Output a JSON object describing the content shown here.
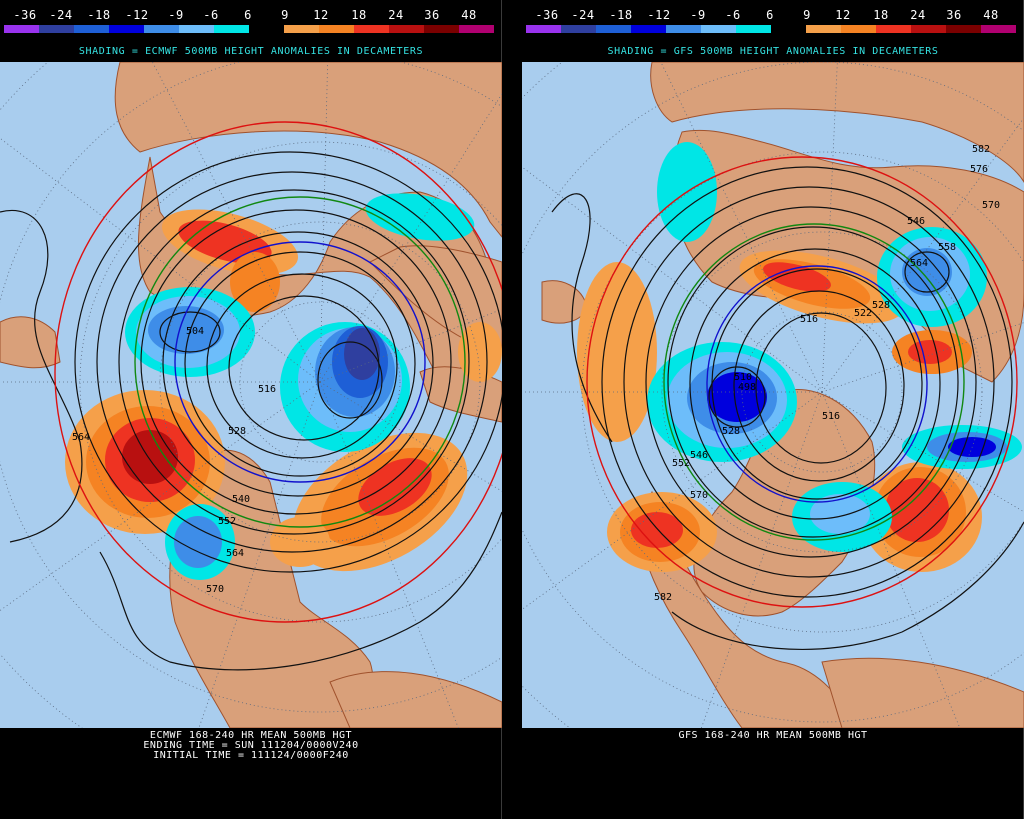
{
  "legend": {
    "ticks": [
      "-36",
      "-24",
      "-18",
      "-12",
      "-9",
      "-6",
      "6",
      "9",
      "12",
      "18",
      "24",
      "36",
      "48"
    ],
    "colors": [
      "#9933ee",
      "#2f3f9f",
      "#1e5fd6",
      "#0000dd",
      "#3e8de8",
      "#6dbdfa",
      "#00e6e6",
      "#000000",
      "#f5a04a",
      "#f58323",
      "#ee3322",
      "#b81010",
      "#7a0000",
      "#b00070"
    ]
  },
  "land_color": "#d9a07a",
  "ocean_color": "#a9cdee",
  "left": {
    "title": "SHADING = ECMWF 500MB HEIGHT ANOMALIES IN DECAMETERS",
    "caption_lines": [
      "ECMWF 168-240 HR MEAN 500MB HGT",
      "ENDING TIME = SUN 111204/0000V240",
      "INITIAL TIME = 111124/0000F240"
    ],
    "contour_labels": [
      "504",
      "516",
      "528",
      "540",
      "552",
      "564",
      "564",
      "570"
    ]
  },
  "right": {
    "title": "SHADING = GFS 500MB HEIGHT ANOMALIES IN DECAMETERS",
    "caption_lines": [
      "GFS 168-240 HR MEAN 500MB HGT"
    ],
    "contour_labels": [
      "582",
      "576",
      "570",
      "546",
      "558",
      "564",
      "528",
      "522",
      "516",
      "510",
      "498",
      "546",
      "552",
      "570",
      "582",
      "516",
      "528"
    ]
  }
}
